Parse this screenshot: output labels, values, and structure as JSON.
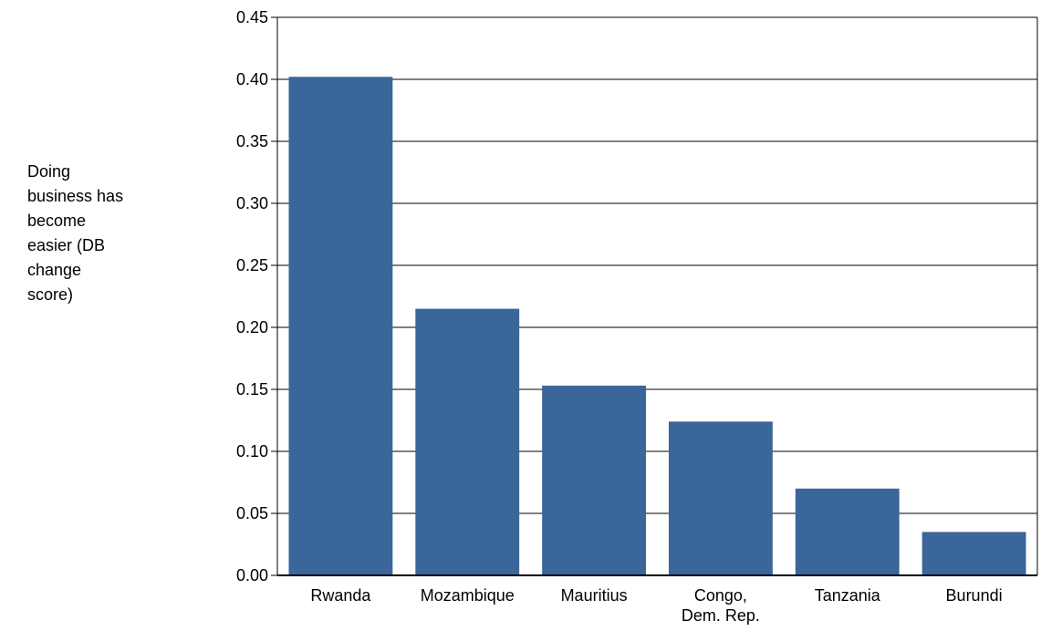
{
  "chart_data": {
    "type": "bar",
    "ylabel_lines": [
      "Doing",
      "business has",
      "become",
      "easier (DB",
      "change",
      "score)"
    ],
    "categories": [
      [
        "Rwanda"
      ],
      [
        "Mozambique"
      ],
      [
        "Mauritius"
      ],
      [
        "Congo,",
        "Dem. Rep."
      ],
      [
        "Tanzania"
      ],
      [
        "Burundi"
      ]
    ],
    "values": [
      0.402,
      0.215,
      0.153,
      0.124,
      0.07,
      0.035
    ],
    "ylim": [
      0,
      0.45
    ],
    "yticks": [
      "0.00",
      "0.05",
      "0.10",
      "0.15",
      "0.20",
      "0.25",
      "0.30",
      "0.35",
      "0.40",
      "0.45"
    ],
    "ytick_values": [
      0,
      0.05,
      0.1,
      0.15,
      0.2,
      0.25,
      0.3,
      0.35,
      0.4,
      0.45
    ],
    "bar_color": "#3a6699",
    "grid": true
  }
}
